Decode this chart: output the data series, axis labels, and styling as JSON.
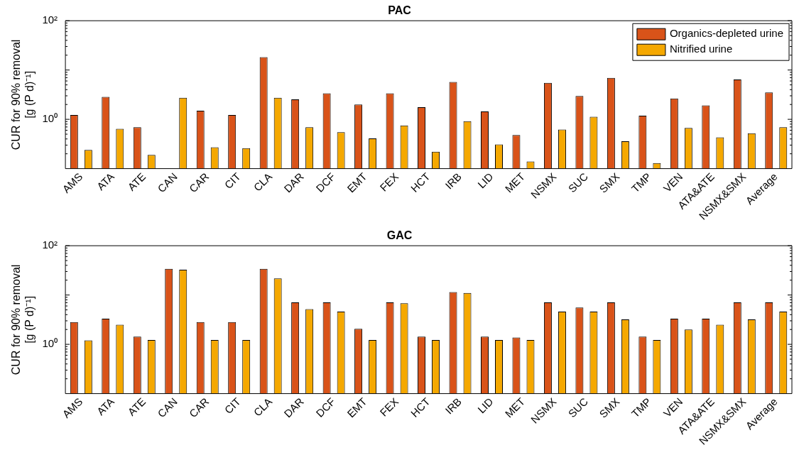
{
  "chart_data": [
    {
      "type": "bar",
      "title": "PAC",
      "ylabel": "CUR for 90% removal\n[g (P d)⁻¹]",
      "categories": [
        "AMS",
        "ATA",
        "ATE",
        "CAN",
        "CAR",
        "CIT",
        "CLA",
        "DAR",
        "DCF",
        "EMT",
        "FEX",
        "HCT",
        "IRB",
        "LID",
        "MET",
        "NSMX",
        "SUC",
        "SMX",
        "TMP",
        "VEN",
        "ATA&ATE",
        "NSMX&SMX",
        "Average"
      ],
      "series": [
        {
          "name": "Organics-depleted urine",
          "color": "#d95319",
          "values": [
            1.22,
            2.86,
            0.69,
            null,
            1.5,
            1.22,
            18.3,
            2.53,
            3.36,
            1.99,
            3.36,
            1.76,
            5.7,
            1.44,
            0.48,
            5.5,
            2.97,
            6.9,
            1.18,
            2.64,
            1.91,
            6.4,
            3.5
          ]
        },
        {
          "name": "Nitrified urine",
          "color": "#f5a800",
          "values": [
            0.24,
            0.64,
            0.19,
            2.74,
            0.27,
            0.26,
            2.74,
            0.69,
            0.55,
            0.41,
            0.75,
            0.22,
            0.92,
            0.31,
            0.14,
            0.62,
            1.13,
            0.36,
            0.13,
            0.67,
            0.43,
            0.52,
            0.69
          ]
        }
      ],
      "log": true,
      "ylim": [
        0.1,
        100
      ],
      "yticks": [
        {
          "value": 1,
          "label": "10⁰"
        },
        {
          "value": 10,
          "label": null
        },
        {
          "value": 100,
          "label": "10²"
        }
      ],
      "legend": "top right"
    },
    {
      "type": "bar",
      "title": "GAC",
      "ylabel": "CUR for 90% removal\n[g (P d)⁻¹]",
      "categories": [
        "AMS",
        "ATA",
        "ATE",
        "CAN",
        "CAR",
        "CIT",
        "CLA",
        "DAR",
        "DCF",
        "EMT",
        "FEX",
        "HCT",
        "IRB",
        "LID",
        "MET",
        "NSMX",
        "SUC",
        "SMX",
        "TMP",
        "VEN",
        "ATA&ATE",
        "NSMX&SMX",
        "Average"
      ],
      "series": [
        {
          "color": "#d95319",
          "values": [
            2.83,
            3.3,
            1.43,
            34,
            2.83,
            2.83,
            34,
            7.1,
            7.1,
            2.06,
            7.1,
            1.43,
            11.5,
            1.43,
            1.38,
            7.1,
            5.6,
            7.1,
            1.43,
            3.3,
            3.3,
            7.1,
            7.1
          ]
        },
        {
          "color": "#f5a800",
          "values": [
            1.2,
            2.5,
            1.22,
            32.6,
            1.22,
            1.22,
            21.8,
            5.2,
            4.6,
            1.22,
            6.8,
            1.22,
            11,
            1.22,
            1.22,
            4.6,
            4.6,
            3.2,
            1.22,
            2.0,
            2.5,
            3.2,
            4.6
          ]
        }
      ],
      "log": true,
      "ylim": [
        0.1,
        100
      ],
      "yticks": [
        {
          "value": 1,
          "label": "10⁰"
        },
        {
          "value": 10,
          "label": null
        },
        {
          "value": 100,
          "label": "10²"
        }
      ],
      "legend": false
    }
  ]
}
